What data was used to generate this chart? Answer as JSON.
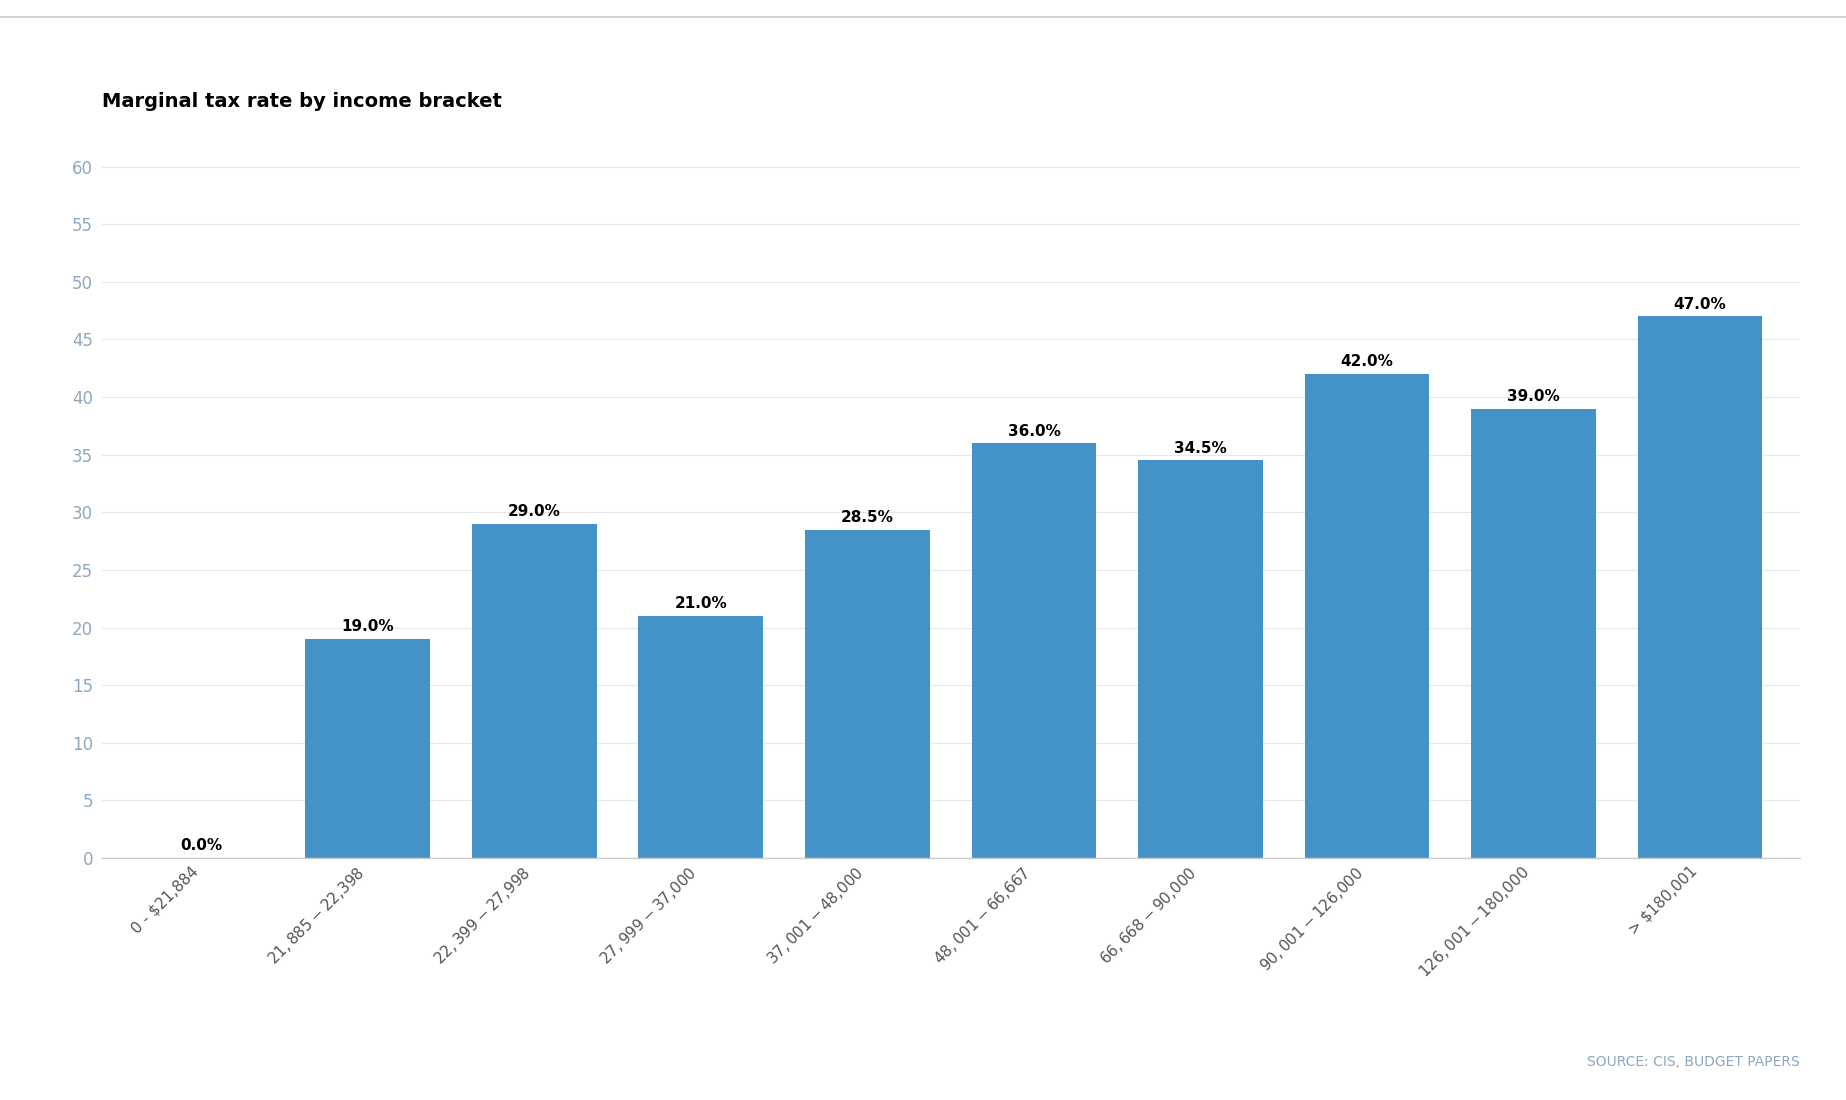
{
  "title": "Marginal tax rate by income bracket",
  "categories": [
    "0 - $21,884",
    "$21,885 - $22,398",
    "$22,399 - $27,998",
    "$27,999 - $37,000",
    "$37,001 - $48,000",
    "$48,001 - $66,667",
    "$66,668 - $90,000",
    "$90,001 - $126,000",
    "$126,001 - $180,000",
    "> $180,001"
  ],
  "values": [
    0.0,
    19.0,
    29.0,
    21.0,
    28.5,
    36.0,
    34.5,
    42.0,
    39.0,
    47.0
  ],
  "bar_color": "#4393c9",
  "yticks": [
    0,
    5,
    10,
    15,
    20,
    25,
    30,
    35,
    40,
    45,
    50,
    55,
    60
  ],
  "ylim": [
    0,
    63
  ],
  "background_color": "#ffffff",
  "title_fontsize": 14,
  "title_fontweight": "bold",
  "label_fontsize": 11,
  "tick_fontsize": 12,
  "ytick_color": "#8fa8c0",
  "xtick_color": "#555555",
  "source_text": "SOURCE: CIS, BUDGET PAPERS",
  "source_color": "#8fa8bf",
  "source_fontsize": 10,
  "top_line_color": "#cccccc",
  "grid_color": "#e8e8e8",
  "bottom_spine_color": "#cccccc",
  "bar_width": 0.75
}
